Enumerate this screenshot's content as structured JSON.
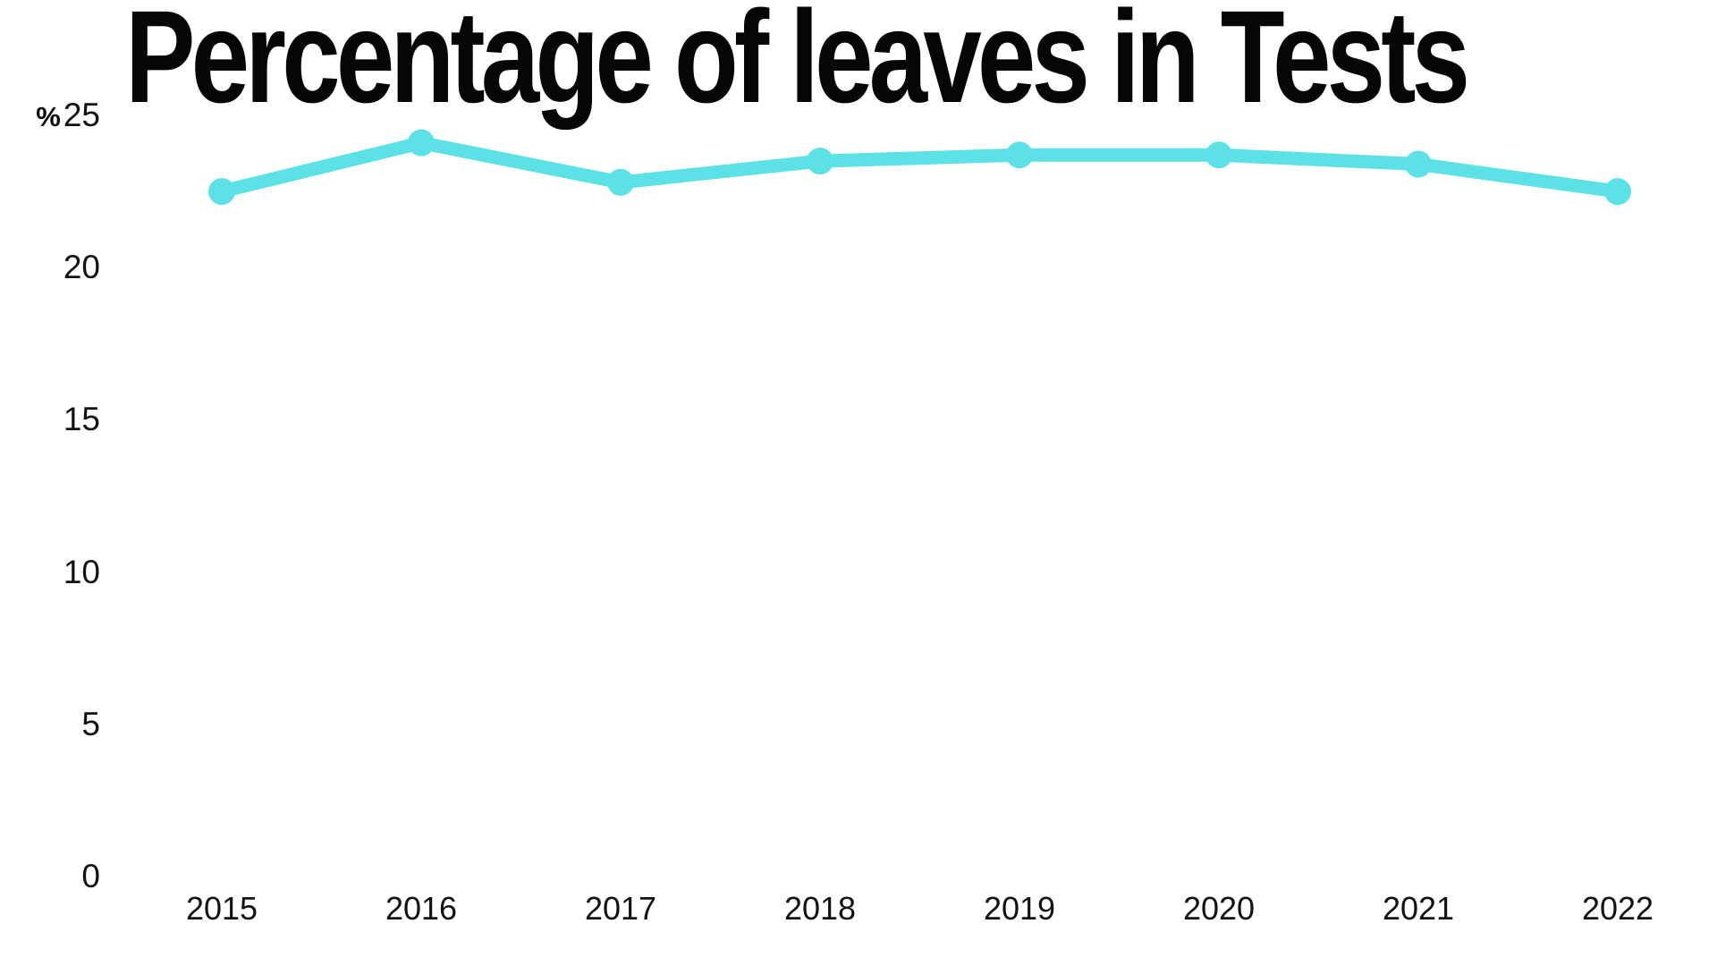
{
  "title": "Percentage of leaves in Tests",
  "colors": {
    "accent": "#5CE1E6",
    "title_text": "#060606",
    "tick_text": "#121212",
    "background": "#FFFFFF"
  },
  "y_axis": {
    "unit_label": "%",
    "ticks": [
      "25",
      "20",
      "15",
      "10",
      "5",
      "0"
    ]
  },
  "x_axis": {
    "ticks": [
      "2015",
      "2016",
      "2017",
      "2018",
      "2019",
      "2020",
      "2021",
      "2022"
    ]
  },
  "chart_data": {
    "type": "line",
    "title": "Percentage of leaves in Tests",
    "x": [
      "2015",
      "2016",
      "2017",
      "2018",
      "2019",
      "2020",
      "2021",
      "2022"
    ],
    "series": [
      {
        "name": "Percentage of leaves",
        "values": [
          22.5,
          24.1,
          22.8,
          23.5,
          23.7,
          23.7,
          23.4,
          22.5
        ]
      }
    ],
    "xlabel": "",
    "ylabel": "%",
    "ylim": [
      0,
      25
    ],
    "yticks": [
      0,
      5,
      10,
      15,
      20,
      25
    ],
    "grid": false,
    "axes_lines": false,
    "legend": "none",
    "marker": "circle",
    "line_color": "#5CE1E6"
  }
}
